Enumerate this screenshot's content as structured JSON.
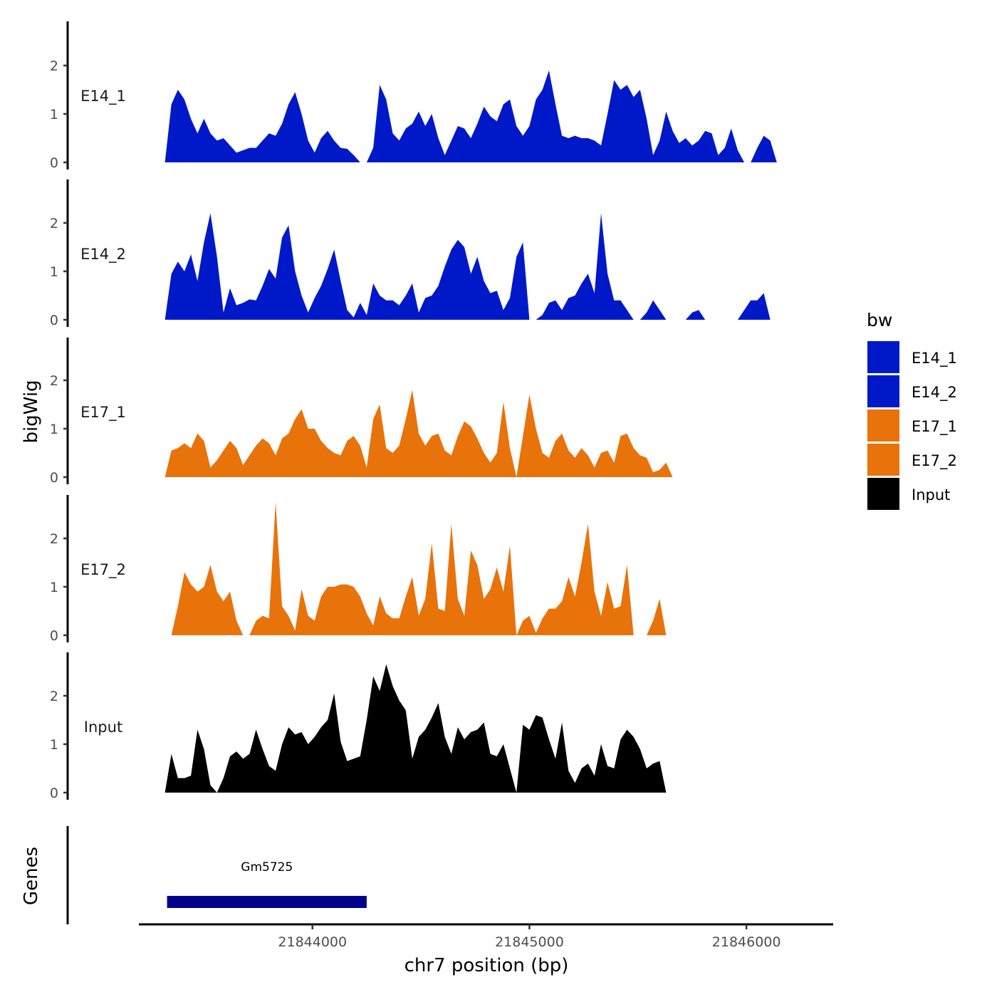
{
  "chart_data": {
    "type": "area",
    "title": "",
    "xlabel": "chr7 position (bp)",
    "ylabel": "bigWig",
    "genes_label": "Genes",
    "xlim": [
      21843200,
      21846400
    ],
    "ylim": [
      0,
      2.9
    ],
    "x_ticks": [
      21844000,
      21845000,
      21846000
    ],
    "y_ticks": [
      0,
      1,
      2
    ],
    "x_values": [
      21843320,
      21843350,
      21843380,
      21843410,
      21843440,
      21843470,
      21843500,
      21843530,
      21843560,
      21843590,
      21843620,
      21843650,
      21843680,
      21843710,
      21843740,
      21843770,
      21843800,
      21843830,
      21843860,
      21843890,
      21843920,
      21843950,
      21843980,
      21844010,
      21844040,
      21844070,
      21844100,
      21844130,
      21844160,
      21844190,
      21844220,
      21844250,
      21844280,
      21844310,
      21844340,
      21844370,
      21844400,
      21844430,
      21844460,
      21844490,
      21844520,
      21844550,
      21844580,
      21844610,
      21844640,
      21844670,
      21844700,
      21844730,
      21844760,
      21844790,
      21844820,
      21844850,
      21844880,
      21844910,
      21844940,
      21844970,
      21845000,
      21845030,
      21845060,
      21845090,
      21845120,
      21845150,
      21845180,
      21845210,
      21845240,
      21845270,
      21845300,
      21845330,
      21845360,
      21845390,
      21845420,
      21845450,
      21845480,
      21845510,
      21845540,
      21845570,
      21845600,
      21845630,
      21845660,
      21845690,
      21845720,
      21845750,
      21845780,
      21845810,
      21845840,
      21845870,
      21845900,
      21845930,
      21845960,
      21845990,
      21846020,
      21846050,
      21846080,
      21846110,
      21846140,
      21846170,
      21846200,
      21846230
    ],
    "series": [
      {
        "name": "E14_1",
        "color": "#0019C8",
        "values": [
          0.0,
          1.2,
          1.5,
          1.3,
          0.9,
          0.6,
          0.9,
          0.6,
          0.45,
          0.5,
          0.35,
          0.2,
          0.25,
          0.3,
          0.3,
          0.45,
          0.6,
          0.55,
          0.8,
          1.2,
          1.45,
          1.0,
          0.45,
          0.2,
          0.5,
          0.65,
          0.45,
          0.3,
          0.28,
          0.15,
          0.0,
          0.0,
          0.3,
          1.6,
          1.3,
          0.6,
          0.45,
          0.7,
          0.8,
          1.05,
          0.75,
          1.0,
          0.5,
          0.15,
          0.45,
          0.75,
          0.7,
          0.5,
          0.8,
          1.15,
          0.95,
          0.85,
          1.2,
          1.3,
          0.75,
          0.55,
          0.75,
          1.3,
          1.5,
          1.9,
          1.2,
          0.55,
          0.5,
          0.55,
          0.5,
          0.5,
          0.45,
          0.35,
          1.0,
          1.7,
          1.5,
          1.6,
          1.35,
          1.5,
          0.9,
          0.15,
          0.45,
          1.05,
          0.65,
          0.4,
          0.5,
          0.35,
          0.45,
          0.65,
          0.6,
          0.15,
          0.3,
          0.7,
          0.25,
          0.0,
          0.0,
          0.3,
          0.55,
          0.45,
          0.0,
          0.0,
          0.0,
          0.0
        ]
      },
      {
        "name": "E14_2",
        "color": "#0019C8",
        "values": [
          0.0,
          0.95,
          1.2,
          1.0,
          1.35,
          0.8,
          1.6,
          2.2,
          1.3,
          0.15,
          0.65,
          0.3,
          0.35,
          0.42,
          0.4,
          0.7,
          1.05,
          0.85,
          1.7,
          1.95,
          1.0,
          0.5,
          0.15,
          0.45,
          0.7,
          1.05,
          1.45,
          0.8,
          0.2,
          0.05,
          0.35,
          0.1,
          0.75,
          0.5,
          0.4,
          0.4,
          0.3,
          0.5,
          0.75,
          0.15,
          0.45,
          0.5,
          0.7,
          1.1,
          1.45,
          1.65,
          1.5,
          0.95,
          1.3,
          0.8,
          0.55,
          0.6,
          0.2,
          0.45,
          1.3,
          1.6,
          0.0,
          0.0,
          0.1,
          0.35,
          0.4,
          0.2,
          0.45,
          0.5,
          0.75,
          0.95,
          0.55,
          2.2,
          0.95,
          0.4,
          0.4,
          0.2,
          0.0,
          0.0,
          0.15,
          0.4,
          0.2,
          0.0,
          0.0,
          0.0,
          0.0,
          0.15,
          0.2,
          0.0,
          0.0,
          0.0,
          0.0,
          0.0,
          0.0,
          0.2,
          0.4,
          0.4,
          0.55,
          0.0,
          0.0,
          0.0,
          0.0,
          0.0
        ]
      },
      {
        "name": "E17_1",
        "color": "#E8730A",
        "values": [
          0.0,
          0.55,
          0.6,
          0.7,
          0.6,
          0.9,
          0.75,
          0.2,
          0.35,
          0.55,
          0.75,
          0.6,
          0.25,
          0.45,
          0.65,
          0.8,
          0.7,
          0.45,
          0.8,
          0.9,
          1.2,
          1.4,
          1.0,
          1.0,
          0.75,
          0.6,
          0.5,
          0.45,
          0.75,
          0.85,
          0.65,
          0.2,
          1.2,
          1.5,
          0.6,
          0.5,
          0.65,
          1.2,
          1.8,
          0.9,
          0.65,
          0.85,
          0.9,
          0.55,
          0.45,
          0.85,
          1.15,
          1.05,
          0.8,
          0.5,
          0.3,
          0.5,
          1.55,
          0.6,
          0.0,
          0.85,
          1.7,
          1.0,
          0.5,
          0.4,
          0.75,
          0.9,
          0.55,
          0.4,
          0.6,
          0.45,
          0.2,
          0.5,
          0.55,
          0.3,
          0.85,
          0.9,
          0.6,
          0.45,
          0.4,
          0.1,
          0.15,
          0.3,
          0.0,
          0.0,
          0.0,
          0.0,
          0.0,
          0.0,
          0.0,
          0.0,
          0.0,
          0.0,
          0.0,
          0.0,
          0.0,
          0.0,
          0.0,
          0.0,
          0.0,
          0.0,
          0.0,
          0.0
        ]
      },
      {
        "name": "E17_2",
        "color": "#E8730A",
        "values": [
          0.0,
          0.0,
          0.6,
          1.3,
          1.05,
          0.9,
          1.0,
          1.45,
          0.9,
          0.7,
          0.9,
          0.3,
          0.0,
          0.0,
          0.3,
          0.4,
          0.35,
          2.75,
          0.6,
          0.4,
          0.1,
          0.95,
          0.4,
          0.3,
          0.8,
          1.0,
          1.0,
          1.05,
          1.05,
          1.0,
          0.8,
          0.45,
          0.2,
          0.8,
          0.45,
          0.35,
          0.35,
          0.8,
          1.2,
          0.4,
          0.75,
          1.9,
          0.55,
          0.5,
          2.3,
          0.75,
          0.4,
          1.75,
          1.45,
          0.75,
          0.95,
          1.4,
          0.9,
          1.85,
          0.0,
          0.3,
          0.4,
          0.05,
          0.35,
          0.55,
          0.55,
          0.7,
          1.2,
          0.8,
          1.5,
          2.3,
          0.9,
          0.4,
          1.1,
          0.55,
          0.6,
          1.45,
          0.0,
          0.0,
          0.0,
          0.3,
          0.75,
          0.0,
          0.0,
          0.0,
          0.0,
          0.0,
          0.0,
          0.0,
          0.0,
          0.0,
          0.0,
          0.0,
          0.0,
          0.0,
          0.0,
          0.0,
          0.0,
          0.0,
          0.0,
          0.0,
          0.0,
          0.0
        ]
      },
      {
        "name": "Input",
        "color": "#000000",
        "values": [
          0.0,
          0.8,
          0.3,
          0.3,
          0.35,
          1.3,
          0.9,
          0.15,
          0.0,
          0.3,
          0.75,
          0.85,
          0.7,
          0.8,
          1.3,
          0.9,
          0.55,
          0.45,
          1.0,
          1.35,
          1.2,
          1.25,
          1.0,
          1.15,
          1.35,
          1.5,
          2.05,
          1.05,
          0.65,
          0.7,
          0.75,
          1.5,
          2.4,
          2.1,
          2.65,
          2.2,
          1.9,
          1.7,
          0.7,
          1.15,
          1.3,
          1.55,
          1.85,
          1.15,
          0.8,
          1.35,
          1.1,
          1.25,
          1.3,
          1.45,
          0.8,
          0.75,
          1.0,
          0.5,
          0.0,
          1.4,
          1.3,
          1.6,
          1.55,
          1.1,
          0.7,
          1.45,
          0.45,
          0.2,
          0.5,
          0.6,
          0.35,
          1.0,
          0.55,
          0.5,
          1.1,
          1.3,
          1.15,
          0.9,
          0.5,
          0.6,
          0.65,
          0.0,
          0.0,
          0.0,
          0.0,
          0.0,
          0.0,
          0.0,
          0.0,
          0.0,
          0.0,
          0.0,
          0.0,
          0.0,
          0.0,
          0.0,
          0.0,
          0.0,
          0.0,
          0.0,
          0.0,
          0.0
        ]
      }
    ],
    "genes": [
      {
        "name": "Gm5725",
        "start": 21843330,
        "end": 21844250,
        "color": "#00008B"
      }
    ],
    "legend": {
      "title": "bw",
      "position": "right",
      "entries": [
        {
          "name": "E14_1",
          "color": "#0019C8"
        },
        {
          "name": "E14_2",
          "color": "#0019C8"
        },
        {
          "name": "E17_1",
          "color": "#E8730A"
        },
        {
          "name": "E17_2",
          "color": "#E8730A"
        },
        {
          "name": "Input",
          "color": "#000000"
        }
      ]
    },
    "grid": false
  }
}
